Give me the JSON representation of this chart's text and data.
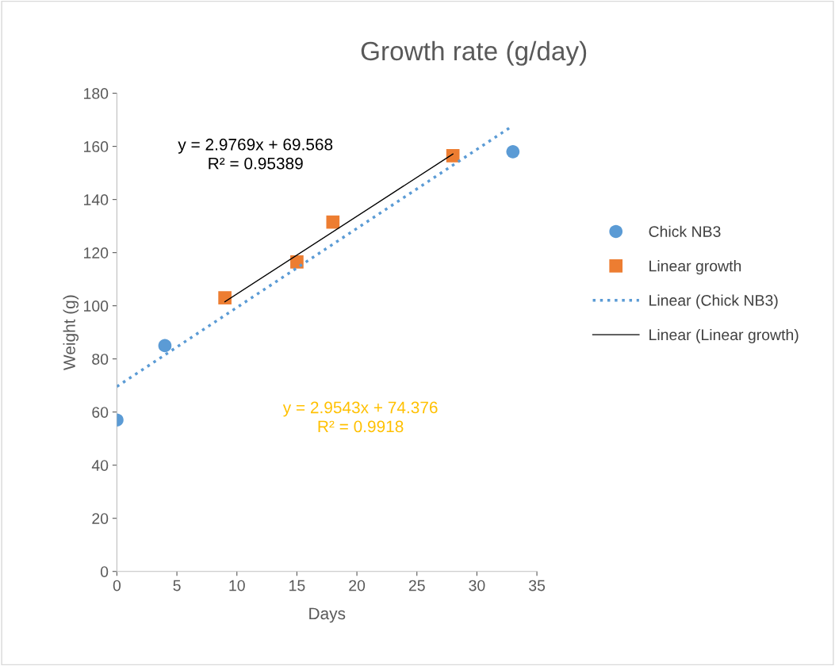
{
  "chart_data": {
    "type": "scatter",
    "title": "Growth rate (g/day)",
    "xlabel": "Days",
    "ylabel": "Weight (g)",
    "xlim": [
      0,
      35
    ],
    "xticks": [
      0,
      5,
      10,
      15,
      20,
      25,
      30,
      35
    ],
    "ylim": [
      0,
      180
    ],
    "yticks": [
      0,
      20,
      40,
      60,
      80,
      100,
      120,
      140,
      160,
      180
    ],
    "grid": false,
    "legend": "right",
    "series": [
      {
        "name": "Chick NB3",
        "marker": "circle",
        "color": "#5b9bd5",
        "x": [
          0,
          4,
          9,
          15,
          18,
          28,
          33
        ],
        "values": [
          57,
          85,
          null,
          null,
          null,
          null,
          158
        ]
      },
      {
        "name": "Linear growth",
        "marker": "square",
        "color": "#ed7d31",
        "x": [
          9,
          15,
          18,
          28
        ],
        "values": [
          103,
          116.5,
          131.5,
          156.5
        ]
      },
      {
        "name": "Linear (Chick NB3)",
        "type": "line",
        "line_style": "dotted",
        "color": "#5b9bd5",
        "x": [
          0,
          33
        ],
        "values": [
          69.6,
          167.8
        ]
      },
      {
        "name": "Linear (Linear growth)",
        "type": "line",
        "line_style": "solid",
        "color": "#000000",
        "x": [
          9,
          28
        ],
        "values": [
          101.5,
          157.1
        ]
      }
    ],
    "annotations": [
      "y = 2.9769x + 69.568\nR² = 0.95389",
      "y = 2.9543x + 74.376\nR² = 0.9918"
    ]
  }
}
